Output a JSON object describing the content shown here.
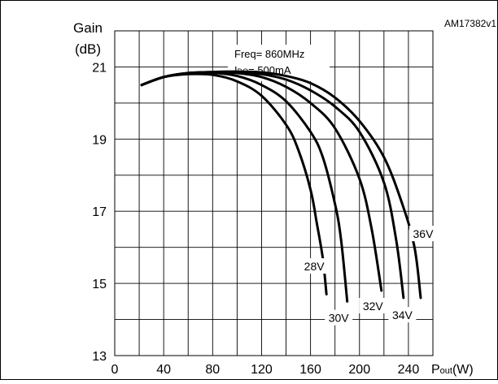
{
  "figure_id": "AM17382v1",
  "chart_data": {
    "type": "line",
    "ylabel_line1": "Gain",
    "ylabel_line2": "(dB)",
    "xlabel_main": "P",
    "xlabel_sub": "out",
    "xlabel_unit": "(W)",
    "annotation_freq": "Freq= 860MHz",
    "annotation_idq_prefix": "I",
    "annotation_idq_sub": "DQ",
    "annotation_idq_value": "= 500mA",
    "xlim": [
      0,
      260
    ],
    "ylim": [
      13,
      22
    ],
    "x_ticks": [
      0,
      40,
      80,
      120,
      160,
      200,
      240
    ],
    "y_ticks": [
      13,
      15,
      17,
      19,
      21
    ],
    "grid": true,
    "series": [
      {
        "name": "28V",
        "x": [
          22,
          40,
          60,
          80,
          100,
          120,
          140,
          150,
          160,
          165,
          170,
          173
        ],
        "y": [
          20.5,
          20.72,
          20.8,
          20.78,
          20.6,
          20.2,
          19.4,
          18.7,
          17.6,
          16.7,
          15.7,
          14.7
        ]
      },
      {
        "name": "30V",
        "x": [
          22,
          40,
          60,
          80,
          100,
          120,
          140,
          160,
          170,
          180,
          185,
          190
        ],
        "y": [
          20.5,
          20.72,
          20.82,
          20.84,
          20.75,
          20.5,
          20.05,
          19.2,
          18.5,
          17.2,
          16.2,
          14.5
        ]
      },
      {
        "name": "32V",
        "x": [
          22,
          40,
          60,
          80,
          100,
          120,
          140,
          160,
          180,
          200,
          210,
          218
        ],
        "y": [
          20.5,
          20.72,
          20.83,
          20.85,
          20.83,
          20.72,
          20.45,
          20.0,
          19.3,
          17.9,
          16.5,
          14.8
        ]
      },
      {
        "name": "34V",
        "x": [
          22,
          40,
          60,
          80,
          100,
          120,
          140,
          160,
          180,
          200,
          220,
          230,
          236
        ],
        "y": [
          20.5,
          20.72,
          20.83,
          20.86,
          20.86,
          20.8,
          20.65,
          20.35,
          19.9,
          19.2,
          17.8,
          16.2,
          14.6
        ]
      },
      {
        "name": "36V",
        "x": [
          22,
          40,
          60,
          80,
          100,
          120,
          140,
          160,
          180,
          200,
          220,
          235,
          245,
          250
        ],
        "y": [
          20.5,
          20.72,
          20.83,
          20.86,
          20.87,
          20.85,
          20.75,
          20.55,
          20.15,
          19.5,
          18.5,
          17.2,
          16.0,
          14.6
        ]
      }
    ],
    "series_label_values": {
      "28V": [
        163,
        15.45
      ],
      "30V": [
        183,
        14.02
      ],
      "32V": [
        211,
        14.35
      ],
      "34V": [
        235,
        14.1
      ],
      "36V": [
        252,
        16.35
      ]
    }
  }
}
